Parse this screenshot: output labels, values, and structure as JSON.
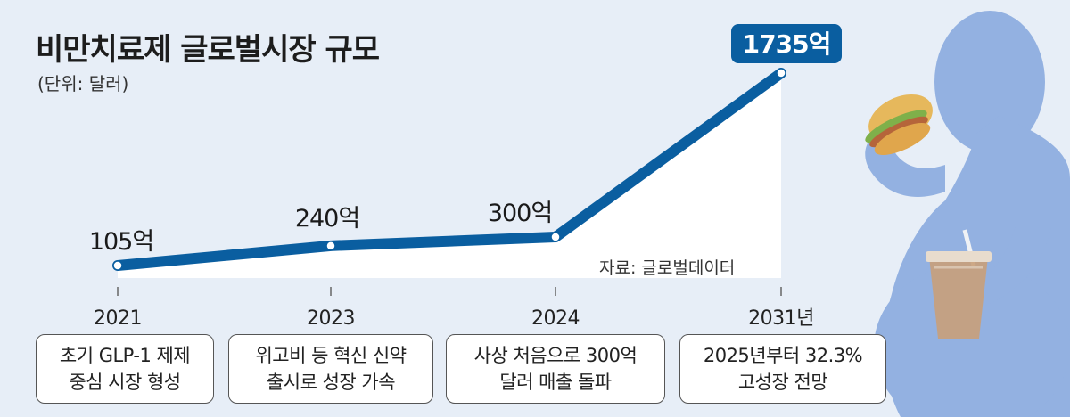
{
  "title": "비만치료제 글로벌시장 규모",
  "unit": "(단위: 달러)",
  "source": "자료: 글로벌데이터",
  "chart_data": {
    "type": "line",
    "title": "비만치료제 글로벌시장 규모",
    "x": [
      "2021",
      "2023",
      "2024",
      "2031년"
    ],
    "values": [
      105,
      240,
      300,
      1735
    ],
    "data_labels": [
      "105억",
      "240억",
      "300억",
      "1735억"
    ],
    "unit": "억 달러",
    "grid": false,
    "colors": {
      "line": "#0a5ea0",
      "highlight": "#0a5ea0",
      "background": "#e7eef7",
      "figure": "#8eaee0"
    }
  },
  "notes": [
    {
      "line1": "초기 GLP-1 제제",
      "line2": "중심 시장 형성"
    },
    {
      "line1": "위고비 등 혁신 신약",
      "line2": "출시로 성장 가속"
    },
    {
      "line1": "사상 처음으로 300억",
      "line2": "달러 매출 돌파"
    },
    {
      "line1": "2025년부터 32.3%",
      "line2": "고성장 전망"
    }
  ]
}
